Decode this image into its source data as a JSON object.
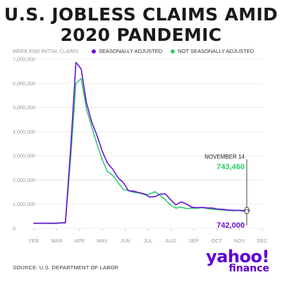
{
  "title_line1": "U.S. JOBLESS CLAIMS AMID",
  "title_line2": "2020 PANDEMIC",
  "source": "SOURCE: U.S. DEPARTMENT OF LABOR",
  "logo": {
    "word": "yahoo!",
    "sub": "finance"
  },
  "colors": {
    "seasonally_adjusted": "#6a11d6",
    "not_seasonally_adjusted": "#2ecc71",
    "text": "#333333",
    "grid": "#e6e6e6"
  },
  "chart_data": {
    "type": "line",
    "title": "U.S. JOBLESS CLAIMS AMID 2020 PANDEMIC",
    "ylabel": "WEEK END INITIAL CLAIMS",
    "xlabel": "",
    "ylim": [
      0,
      7000000
    ],
    "yticks": [
      "7,000,000",
      "6,000,000",
      "5,000,000",
      "4,000,000",
      "3,000,000",
      "2,000,000",
      "1,000,000",
      "0"
    ],
    "ytick_values": [
      7000000,
      6000000,
      5000000,
      4000000,
      3000000,
      2000000,
      1000000,
      0
    ],
    "x_months": [
      "FEB",
      "MAR",
      "APR",
      "MAY",
      "JUN",
      "JUL",
      "AUG",
      "SEP",
      "OCT",
      "NOV",
      "DEC"
    ],
    "grid": true,
    "legend_position": "top",
    "annotation": {
      "label": "NOVEMBER 14",
      "value_not_seasonal": "743,460",
      "value_seasonal": "742,000"
    },
    "series": [
      {
        "name": "SEASONALLY ADJUSTED",
        "x": [
          "2020-02-01",
          "2020-02-15",
          "2020-03-01",
          "2020-03-14",
          "2020-03-21",
          "2020-03-28",
          "2020-04-04",
          "2020-04-11",
          "2020-04-18",
          "2020-04-25",
          "2020-05-02",
          "2020-05-09",
          "2020-05-16",
          "2020-05-23",
          "2020-05-30",
          "2020-06-06",
          "2020-06-13",
          "2020-06-20",
          "2020-06-27",
          "2020-07-04",
          "2020-07-11",
          "2020-07-18",
          "2020-07-25",
          "2020-08-01",
          "2020-08-08",
          "2020-08-15",
          "2020-08-22",
          "2020-08-29",
          "2020-09-05",
          "2020-09-12",
          "2020-09-19",
          "2020-09-26",
          "2020-10-03",
          "2020-10-10",
          "2020-10-17",
          "2020-10-24",
          "2020-10-31",
          "2020-11-07",
          "2020-11-14"
        ],
        "values": [
          210000,
          215000,
          215000,
          230000,
          3300000,
          6870000,
          6600000,
          5200000,
          4400000,
          3850000,
          3200000,
          2700000,
          2450000,
          2100000,
          1900000,
          1560000,
          1540000,
          1480000,
          1430000,
          1300000,
          1310000,
          1420000,
          1430000,
          1190000,
          970000,
          1100000,
          1010000,
          880000,
          860000,
          870000,
          850000,
          840000,
          800000,
          790000,
          760000,
          750000,
          740000,
          720000,
          742000
        ]
      },
      {
        "name": "NOT SEASONALLY ADJUSTED",
        "x": [
          "2020-02-01",
          "2020-02-15",
          "2020-03-01",
          "2020-03-14",
          "2020-03-21",
          "2020-03-28",
          "2020-04-04",
          "2020-04-11",
          "2020-04-18",
          "2020-04-25",
          "2020-05-02",
          "2020-05-09",
          "2020-05-16",
          "2020-05-23",
          "2020-05-30",
          "2020-06-06",
          "2020-06-13",
          "2020-06-20",
          "2020-06-27",
          "2020-07-04",
          "2020-07-11",
          "2020-07-18",
          "2020-07-25",
          "2020-08-01",
          "2020-08-08",
          "2020-08-15",
          "2020-08-22",
          "2020-08-29",
          "2020-09-05",
          "2020-09-12",
          "2020-09-19",
          "2020-09-26",
          "2020-10-03",
          "2020-10-10",
          "2020-10-17",
          "2020-10-24",
          "2020-10-31",
          "2020-11-07",
          "2020-11-14"
        ],
        "values": [
          220000,
          210000,
          200000,
          250000,
          2900000,
          6000000,
          6200000,
          4950000,
          4200000,
          3500000,
          2850000,
          2350000,
          2200000,
          1900000,
          1620000,
          1560000,
          1490000,
          1470000,
          1400000,
          1420000,
          1520000,
          1370000,
          1190000,
          960000,
          840000,
          880000,
          820000,
          840000,
          830000,
          860000,
          820000,
          790000,
          780000,
          760000,
          740000,
          730000,
          750000,
          745000,
          743460
        ]
      }
    ]
  }
}
